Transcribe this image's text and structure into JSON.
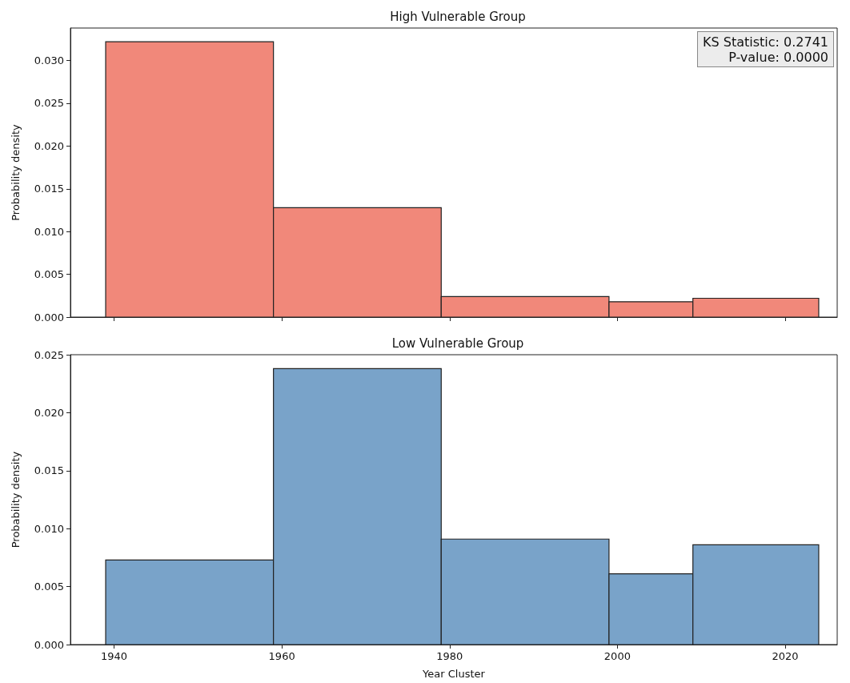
{
  "chart_data": [
    {
      "type": "histogram",
      "title": "High Vulnerable Group",
      "ylabel": "Probability density",
      "bins": [
        1939,
        1959,
        1979,
        1999,
        2009,
        2024
      ],
      "values": [
        0.0322,
        0.0128,
        0.0024,
        0.0018,
        0.0022
      ],
      "color": "#f1887a",
      "xlim": [
        1934.8,
        2026.2
      ],
      "xticks": [
        1940,
        1960,
        1980,
        2000,
        2020
      ],
      "ylim": [
        0,
        0.0338
      ],
      "yticks": [
        {
          "value": 0,
          "label": "0.000"
        },
        {
          "value": 0.005,
          "label": "0.005"
        },
        {
          "value": 0.01,
          "label": "0.010"
        },
        {
          "value": 0.015,
          "label": "0.015"
        },
        {
          "value": 0.02,
          "label": "0.020"
        },
        {
          "value": 0.025,
          "label": "0.025"
        },
        {
          "value": 0.03,
          "label": "0.030"
        }
      ],
      "tick_labels": "y",
      "grid": false,
      "annotations": [
        "KS Statistic: 0.2741",
        "P-value: 0.0000"
      ]
    },
    {
      "type": "histogram",
      "title": "Low Vulnerable Group",
      "xlabel": "Year Cluster",
      "ylabel": "Probability density",
      "bins": [
        1939,
        1959,
        1979,
        1999,
        2009,
        2024
      ],
      "values": [
        0.0073,
        0.0238,
        0.0091,
        0.0061,
        0.0086
      ],
      "color": "#79a3c9",
      "xlim": [
        1934.8,
        2026.2
      ],
      "xticks": [
        1940,
        1960,
        1980,
        2000,
        2020
      ],
      "ylim": [
        0,
        0.025
      ],
      "yticks": [
        {
          "value": 0,
          "label": "0.000"
        },
        {
          "value": 0.005,
          "label": "0.005"
        },
        {
          "value": 0.01,
          "label": "0.010"
        },
        {
          "value": 0.015,
          "label": "0.015"
        },
        {
          "value": 0.02,
          "label": "0.020"
        },
        {
          "value": 0.025,
          "label": "0.025"
        }
      ],
      "grid": false
    }
  ]
}
